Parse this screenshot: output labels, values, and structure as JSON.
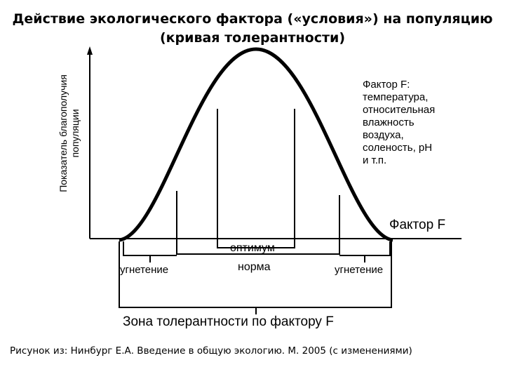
{
  "title": {
    "line1": "Действие экологического фактора («условия») на популяцию",
    "line2": "(кривая толерантности)"
  },
  "y_axis": {
    "line1": "Показатель благополучия",
    "line2": "популяции"
  },
  "factor_note": {
    "lines": [
      "Фактор F:",
      "температура,",
      "относительная",
      "влажность",
      "воздуха,",
      "соленость, pH",
      "и т.п."
    ]
  },
  "x_axis": {
    "label": "Фактор F"
  },
  "zones": {
    "optimum": "оптимум",
    "norm": "норма",
    "inhibition_left": "угнетение",
    "inhibition_right": "угнетение",
    "tolerance_zone": "Зона толерантности по фактору F"
  },
  "caption": "Рисунок из: Нинбург Е.А. Введение в общую экологию. М. 2005 (с изменениями)"
}
